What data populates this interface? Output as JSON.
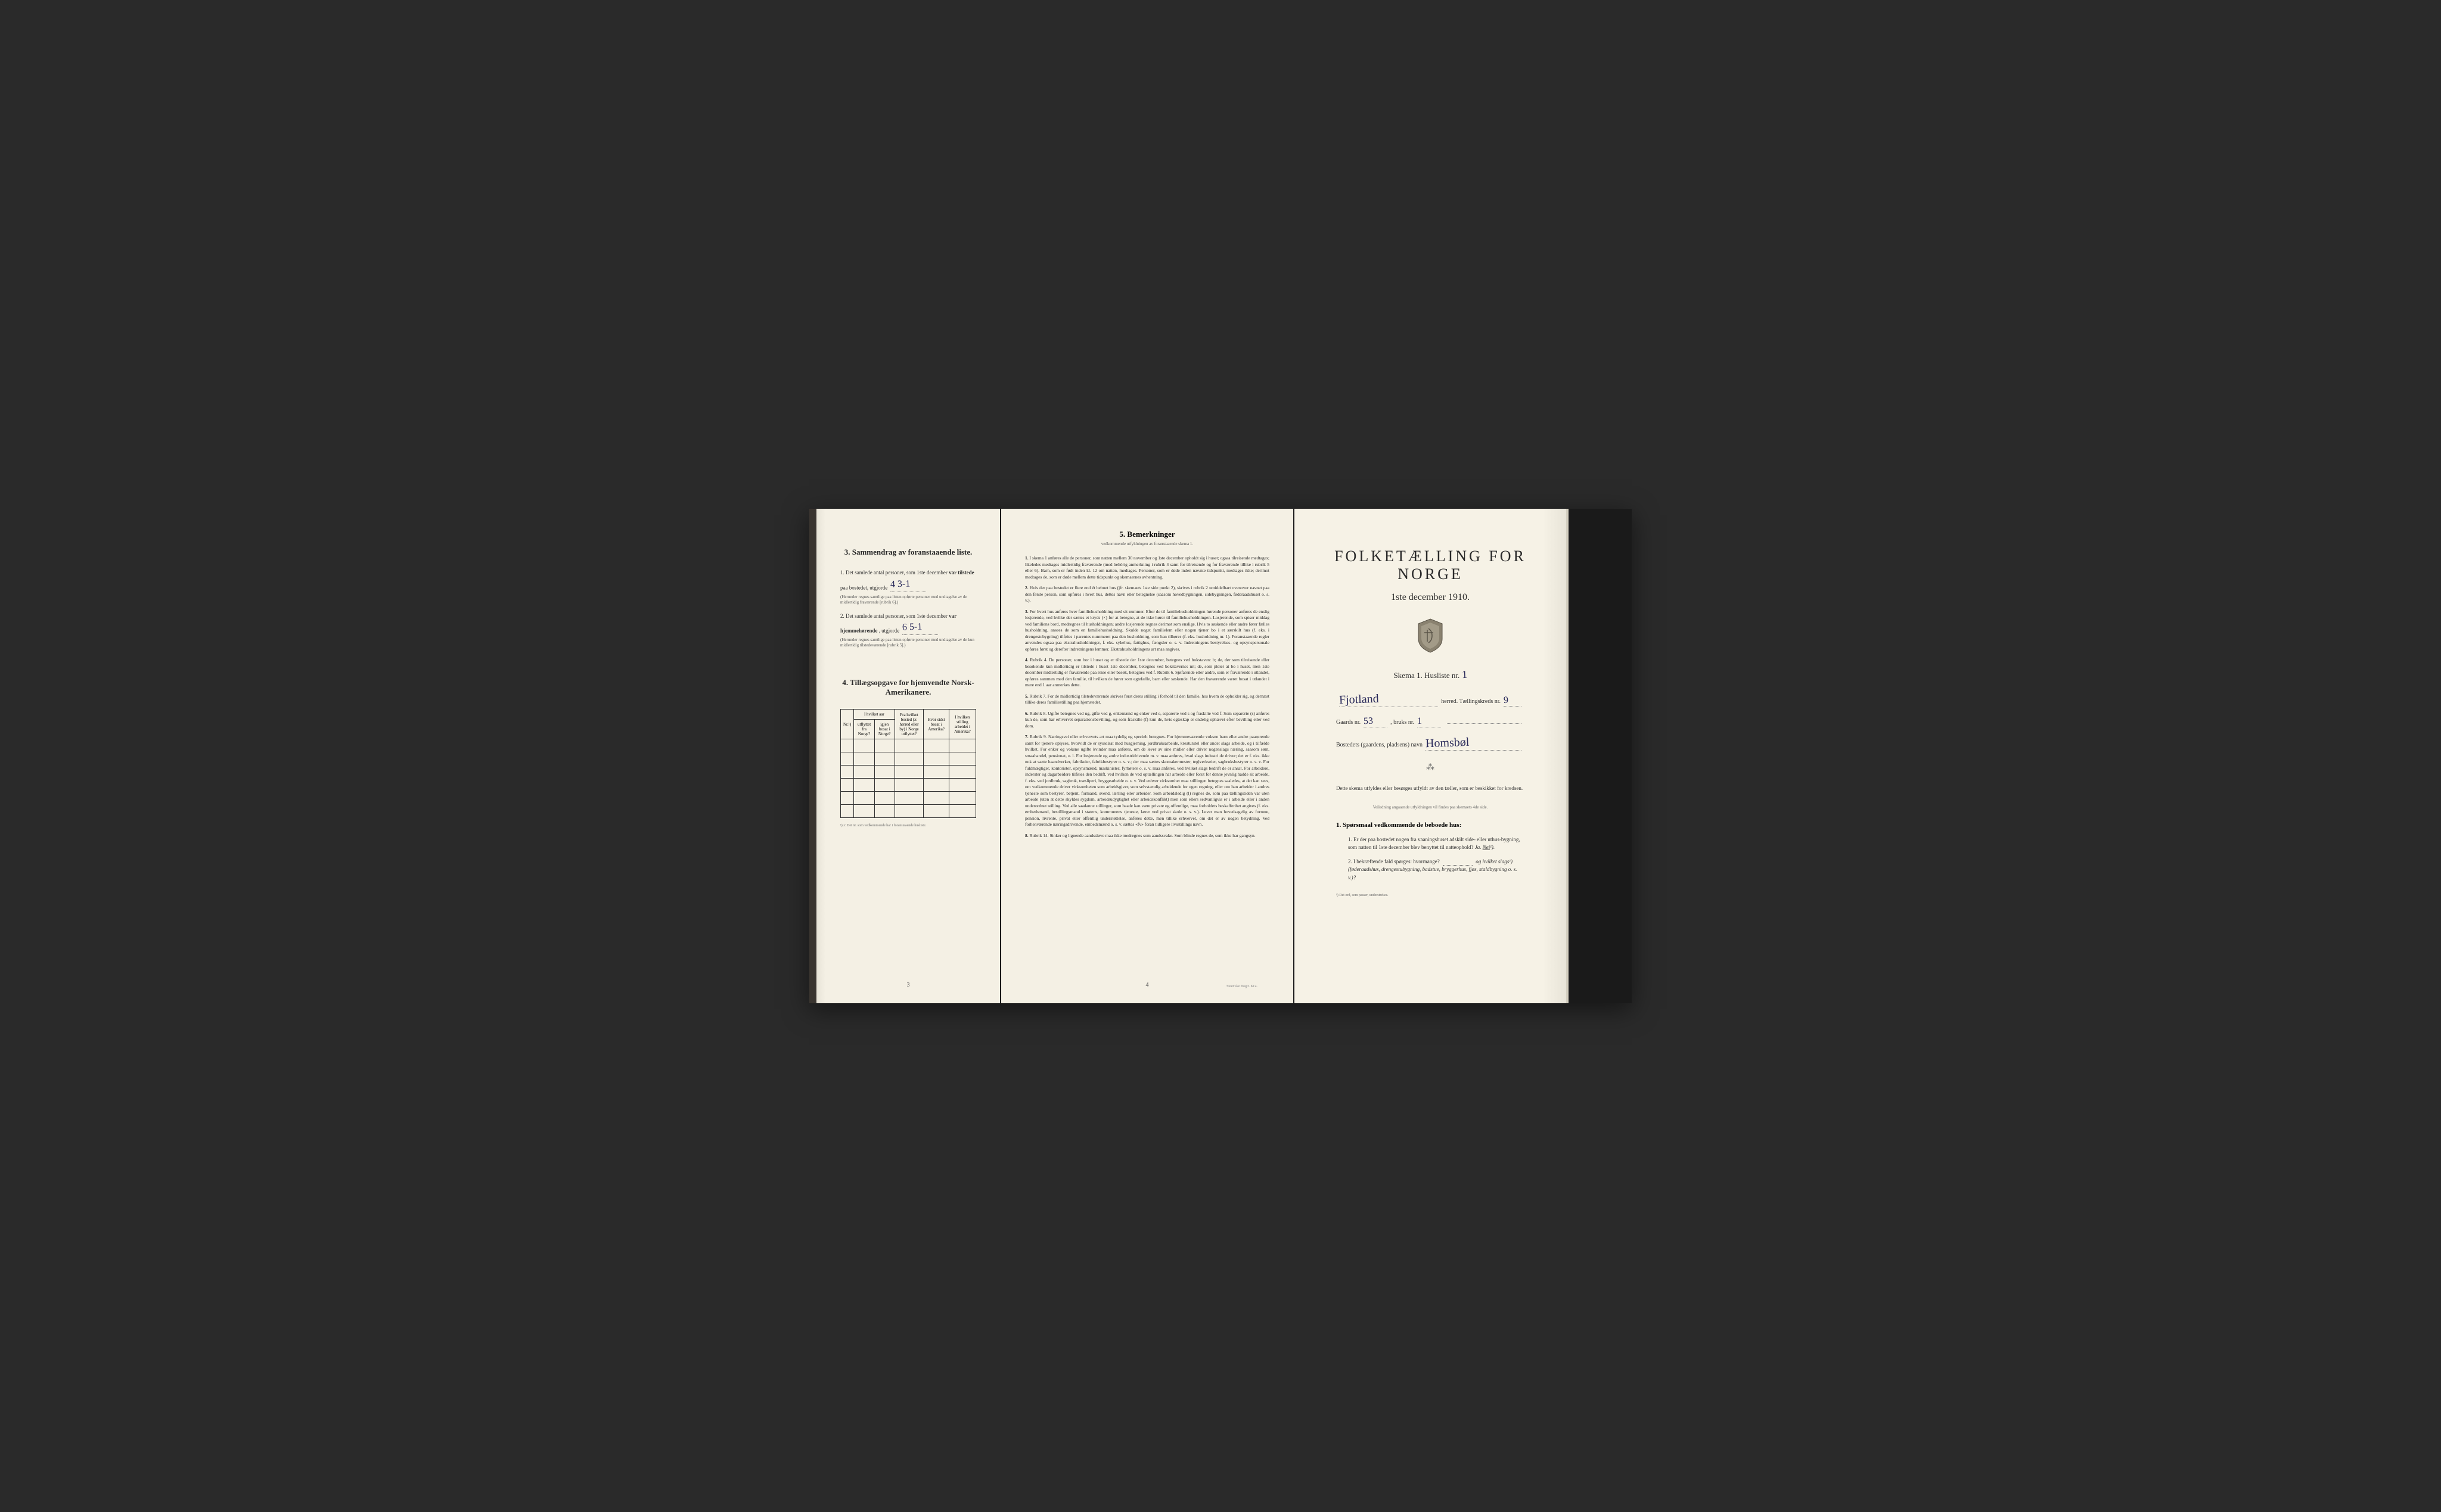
{
  "page_left": {
    "section3": {
      "title": "3.   Sammendrag av foranstaaende liste.",
      "item1": {
        "text_before": "1. Det samlede antal personer, som 1ste december",
        "text_bold": "var tilstede",
        "text_after": "paa bostedet, utgjorde",
        "handwritten": "4   3-1",
        "note": "(Herunder regnes samtlige paa listen opførte personer med undtagelse av de midlertidig fraværende [rubrik 6].)"
      },
      "item2": {
        "text_before": "2. Det samlede antal personer, som 1ste december",
        "text_bold": "var hjemmehørende",
        "text_after": ", utgjorde",
        "handwritten": "6   5-1",
        "note": "(Herunder regnes samtlige paa listen opførte personer med undtagelse av de kun midlertidig tilstedeværende [rubrik 5].)"
      }
    },
    "section4": {
      "title": "4.   Tillægsopgave for hjemvendte Norsk-Amerikanere.",
      "table": {
        "headers": {
          "col1": "Nr.¹)",
          "col2_main": "I hvilket aar",
          "col2a": "utflyttet fra Norge?",
          "col2b": "igjen bosat i Norge?",
          "col3": "Fra hvilket bosted (ɔ: herred eller by) i Norge utflyttet?",
          "col4": "Hvor sidst bosat i Amerika?",
          "col5": "I hvilken stilling arbeidet i Amerika?"
        },
        "empty_rows": 6
      },
      "footnote": "¹) ɔ: Det nr. som vedkommende har i foranstaaende husliste."
    },
    "page_number": "3"
  },
  "page_middle": {
    "title": "5.   Bemerkninger",
    "subtitle": "vedkommende utfyldningen av foranstaaende skema 1.",
    "remarks": [
      "I skema 1 anføres alle de personer, som natten mellem 30 november og 1ste december opholdt sig i huset; ogsaa tilreisende medtages; likeledes medtages midlertidig fraværende (med behörig anmerkning i rubrik 4 samt for tilreisende og for fraværende tillike i rubrik 5 eller 6). Barn, som er født inden kl. 12 om natten, medtages. Personer, som er døde inden nævnte tidspunkt, medtages ikke; derimot medtages de, som er døde mellem dette tidspunkt og skemaernes avhentning.",
      "Hvis der paa bostedet er flere end ét beboet hus (jfr. skemaets 1ste side punkt 2), skrives i rubrik 2 umiddelbart ovenover navnet paa den første person, som opføres i hvert hus, dettes navn eller betegnelse (saasom hovedbygningen, sidebygningen, føderaadshuset o. s. v.).",
      "For hvert hus anføres hver familiehusholdning med sit nummer. Efter de til familiehusholdningen hørende personer anføres de enslig losjerende, ved hvilke der sættes et kryds (×) for at betegne, at de ikke hører til familiehusholdningen. Losjerende, som spiser middag ved familiens bord, medregnes til husholdningen; andre losjerende regnes derimot som enslige. Hvis to søskende eller andre fører fælles husholdning, ansees de som en familiehusholdning. Skulde noget familielem eller nogen tjener bo i et særskilt hus (f. eks. i drengestubygning) tilføies i parentes nummeret paa den husholdning, som han tilhører (f. eks. husholdning nr. 1). Foranstaaende regler anvendes ogsaa paa ekstrahusholdninger, f. eks. sykehus, fattighus, fængsler o. s. v. Indretningens bestyrelses- og opsynspersonale opføres først og derefter indretningens lemmer. Ekstrahusholdningens art maa angives.",
      "Rubrik 4. De personer, som bor i huset og er tilstede der 1ste december, betegnes ved bokstaven: b; de, der som tilreisende eller besøkende kun midlertidig er tilstede i huset 1ste december, betegnes ved bokstaverne: mt; de, som pleier at bo i huset, men 1ste december midlertidig er fraværende paa reise eller besøk, betegnes ved f. Rubrik 6. Sjøfarende eller andre, som er fraværende i utlandet, opføres sammen med den familie, til hvilken de hører som egtefælle, barn eller søskende. Har den fraværende været bosat i utlandet i mere end 1 aar anmerkes dette.",
      "Rubrik 7. For de midlertidig tilstedeværende skrives først deres stilling i forhold til den familie, hos hvem de opholder sig, og dernæst tillike deres familiestilling paa hjemstedet.",
      "Rubrik 8. Ugifte betegnes ved ug, gifte ved g, enkemænd og enker ved e, separerte ved s og fraskilte ved f. Som separerte (s) anføres kun de, som har erhvervet separationsbevilling, og som fraskilte (f) kun de, hvis egteskap er endelig ophævet efter bevilling eller ved dom.",
      "Rubrik 9. Næringsvei eller erhvervets art maa tydelig og specielt betegnes. For hjemmeværende voksne barn eller andre paarørende samt for tjenere oplyses, hvorvidt de er sysselsat med husgjerning, jordbruksarbeide, kreaturstel eller andet slags arbeide, og i tilfælde hvilket. For enker og voksne ugifte kvinder maa anføres, om de lever av sine midler eller driver nogenslags næring, saasom søm, smaahandel, pensionat, o. l. For losjerende og andre industridrivende m. v. maa anføres, hvad slags industri de driver; det er f. eks. ikke nok at sætte haandverker, fabrikeier, fabrikbestyrer o. s. v.; der maa sættes skomakermester, teglverkseier, sagbruksbestyrer o. s. v. For fuldmægtiger, kontorister, opsynsmænd, maskinister, fyrbøtere o. s. v. maa anføres, ved hvilket slags bedrift de er ansat. For arbeidere, inderster og dagarbeidere tilføies den bedrift, ved hvilken de ved optællingen har arbeide eller forut for denne jevnlig hadde sit arbeide, f. eks. ved jordbruk, sagbruk, træsliperi, bryggearbeide o. s. v. Ved enhver virksomhet maa stillingen betegnes saaledes, at det kan sees, om vedkommende driver virksomheten som arbeidsgiver, som selvstændig arbeidende for egen regning, eller om han arbeider i andres tjeneste som bestyrer, betjent, formand, svend, lærling eller arbeider. Som arbeidsledig (l) regnes de, som paa tællingstiden var uten arbeide (uten at dette skyldes sygdom, arbeidsudygtighet eller arbeidskonflikt) men som ellers sedvanligvis er i arbeide eller i anden underordnet stilling. Ved alle saadanne stillinger, som baade kan være private og offentlige, maa forholdets beskaffenhet angives (f. eks. embedsmand, bestillingsmand i statens, kommunens tjeneste, lærer ved privat skole o. s. v.). Lever man hovedsagelig av formue, pension, livrente, privat eller offentlig understøttelse, anføres dette, men tillike erhvervet, om det er av nogen betydning. Ved forhenværende næringsdrivende, embedsmænd o. s. v. sættes «fv» foran tidligere livsstillings navn.",
      "Rubrik 14. Sinker og lignende aandssløve maa ikke medregnes som aandssvake. Som blinde regnes de, som ikke har gangsyn."
    ],
    "page_number": "4",
    "printer": "Steen'ske Bogtr. Kr.a."
  },
  "page_right": {
    "main_title": "FOLKETÆLLING FOR NORGE",
    "date": "1ste december 1910.",
    "skema_text": "Skema 1.   Husliste nr.",
    "skema_handwritten": "1",
    "field_herred": {
      "handwritten": "Fjotland",
      "label": "herred.   Tællingskreds nr.",
      "kreds_handwritten": "9"
    },
    "field_gaard": {
      "label_before": "Gaards nr.",
      "gaard_num": "53",
      "label_mid": ", bruks nr.",
      "bruks_num": "1"
    },
    "field_bosted": {
      "label": "Bostedets (gaardens, pladsens) navn",
      "handwritten": "Homsbøl"
    },
    "instruction": "Dette skema utfyldes eller besørges utfyldt av den tæller, som er beskikket for kredsen.",
    "small_instruction": "Veiledning angaaende utfyldningen vil findes paa skemaets 4de side.",
    "question_header": "1. Spørsmaal vedkommende de beboede hus:",
    "question1": {
      "text": "1. Er der paa bostedet nogen fra vaaningshuset adskilt side- eller uthus-bygning, som natten til 1ste december blev benyttet til natteophold?",
      "ja": "Ja.",
      "nei": "Nei",
      "sup": "¹)."
    },
    "question2": {
      "text": "2. I bekræftende fald spørges: hvormange?",
      "text_after": "og hvilket slags¹) (føderaadshus, drengestubygning, badstue, bryggerhus, fjøs, staldbygning o. s. v.)?"
    },
    "bottom_footnote": "¹) Det ord, som passer, understrekes."
  }
}
